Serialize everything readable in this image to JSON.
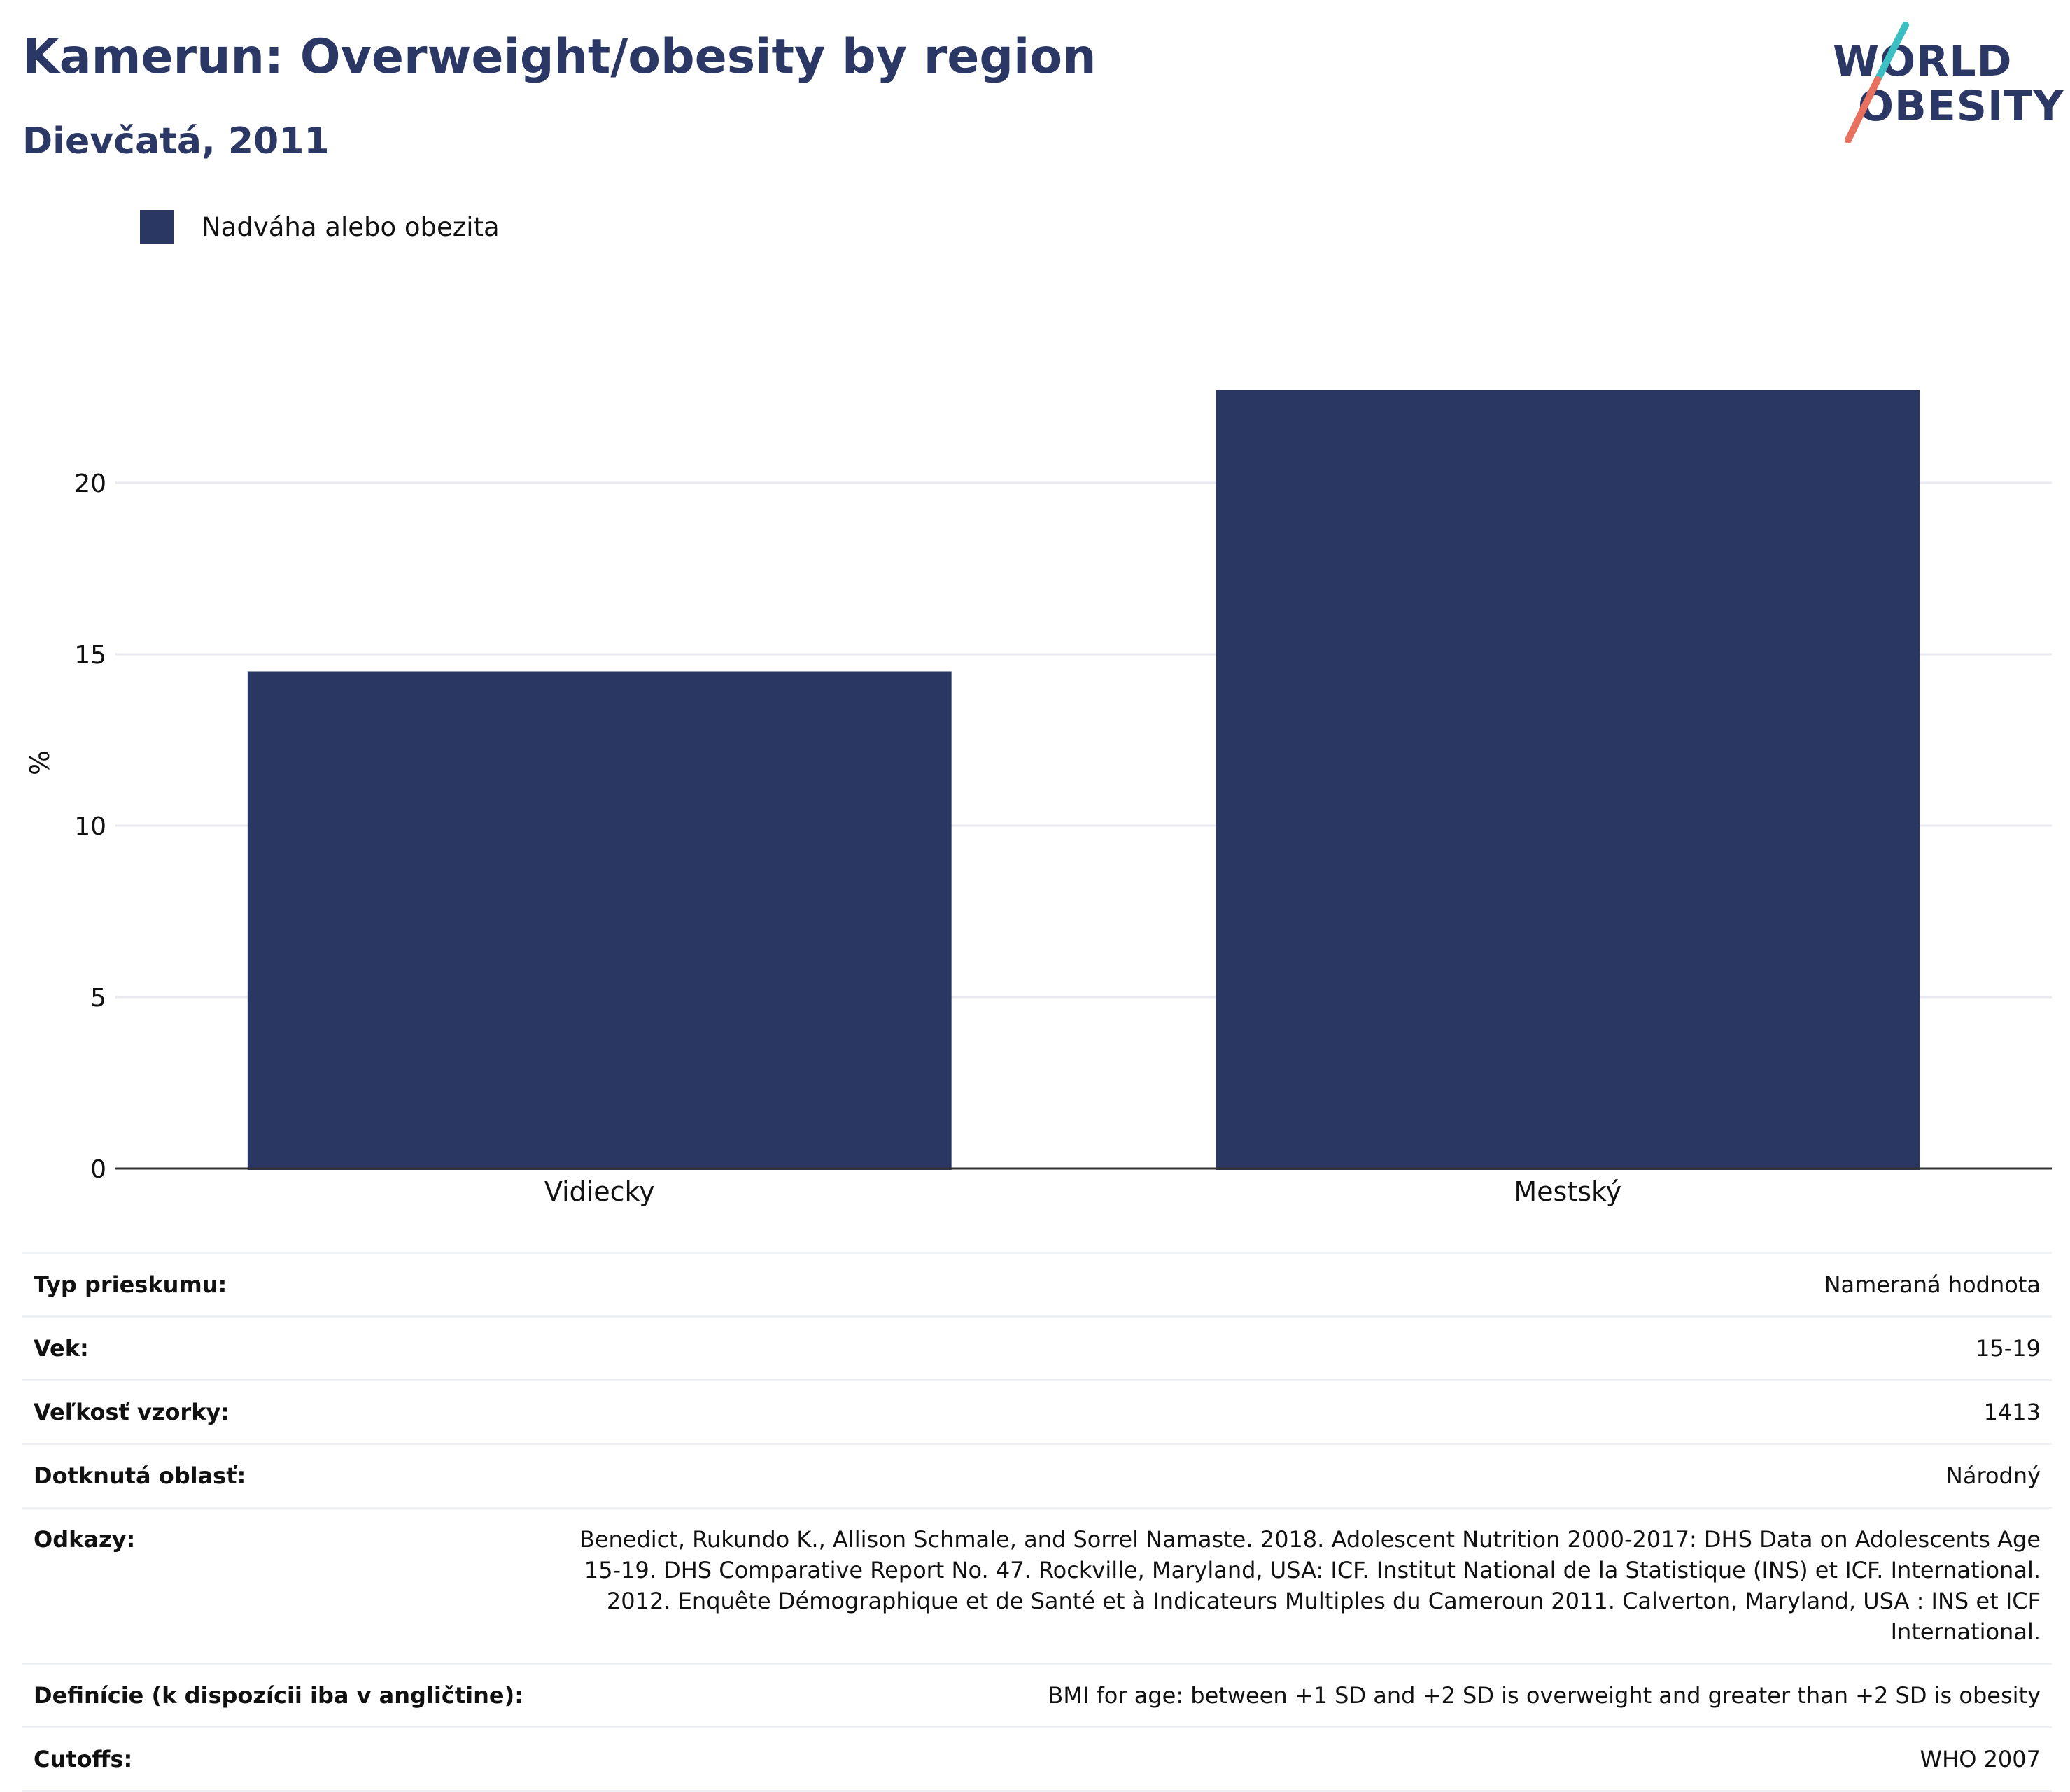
{
  "title": "Kamerun: Overweight/obesity by region",
  "subtitle": "Dievčatá, 2011",
  "logo": {
    "line1": "WORLD",
    "line2": "OBESITY",
    "colors": {
      "text": "#2b3764",
      "slash_top": "#3bbfc3",
      "slash_bottom": "#e8705f"
    }
  },
  "colors": {
    "bar": "#2a3763",
    "title": "#2b3764",
    "grid": "#e8eaf0",
    "axis": "#333333"
  },
  "chart_data": {
    "type": "bar",
    "title": "Kamerun: Overweight/obesity by region",
    "subtitle": "Dievčatá, 2011",
    "categories": [
      "Vidiecky",
      "Mestský"
    ],
    "series": [
      {
        "name": "Nadváha alebo obezita",
        "values": [
          14.5,
          22.7
        ]
      }
    ],
    "ylabel": "%",
    "xlabel": "",
    "ylim": [
      0,
      25
    ],
    "yticks": [
      0,
      5,
      10,
      15,
      20
    ],
    "grid": true,
    "legend_position": "top-left"
  },
  "info": [
    {
      "key": "Typ prieskumu:",
      "value": "Nameraná hodnota"
    },
    {
      "key": "Vek:",
      "value": "15-19"
    },
    {
      "key": "Veľkosť vzorky:",
      "value": "1413"
    },
    {
      "key": "Dotknutá oblasť:",
      "value": "Národný"
    },
    {
      "key": "Odkazy:",
      "value": "Benedict, Rukundo K., Allison Schmale, and Sorrel Namaste. 2018. Adolescent Nutrition 2000-2017: DHS Data on Adolescents Age 15-19. DHS Comparative Report No. 47. Rockville, Maryland, USA: ICF. Institut National de la Statistique (INS) et ICF. International. 2012. Enquête Démographique et de Santé et à Indicateurs Multiples du Cameroun 2011. Calverton, Maryland, USA : INS et ICF International."
    },
    {
      "key": "Definície (k dispozícii iba v angličtine):",
      "value": "BMI for age: between +1 SD and +2 SD is overweight and greater than +2 SD is obesity"
    },
    {
      "key": "Cutoffs:",
      "value": "WHO 2007"
    }
  ]
}
